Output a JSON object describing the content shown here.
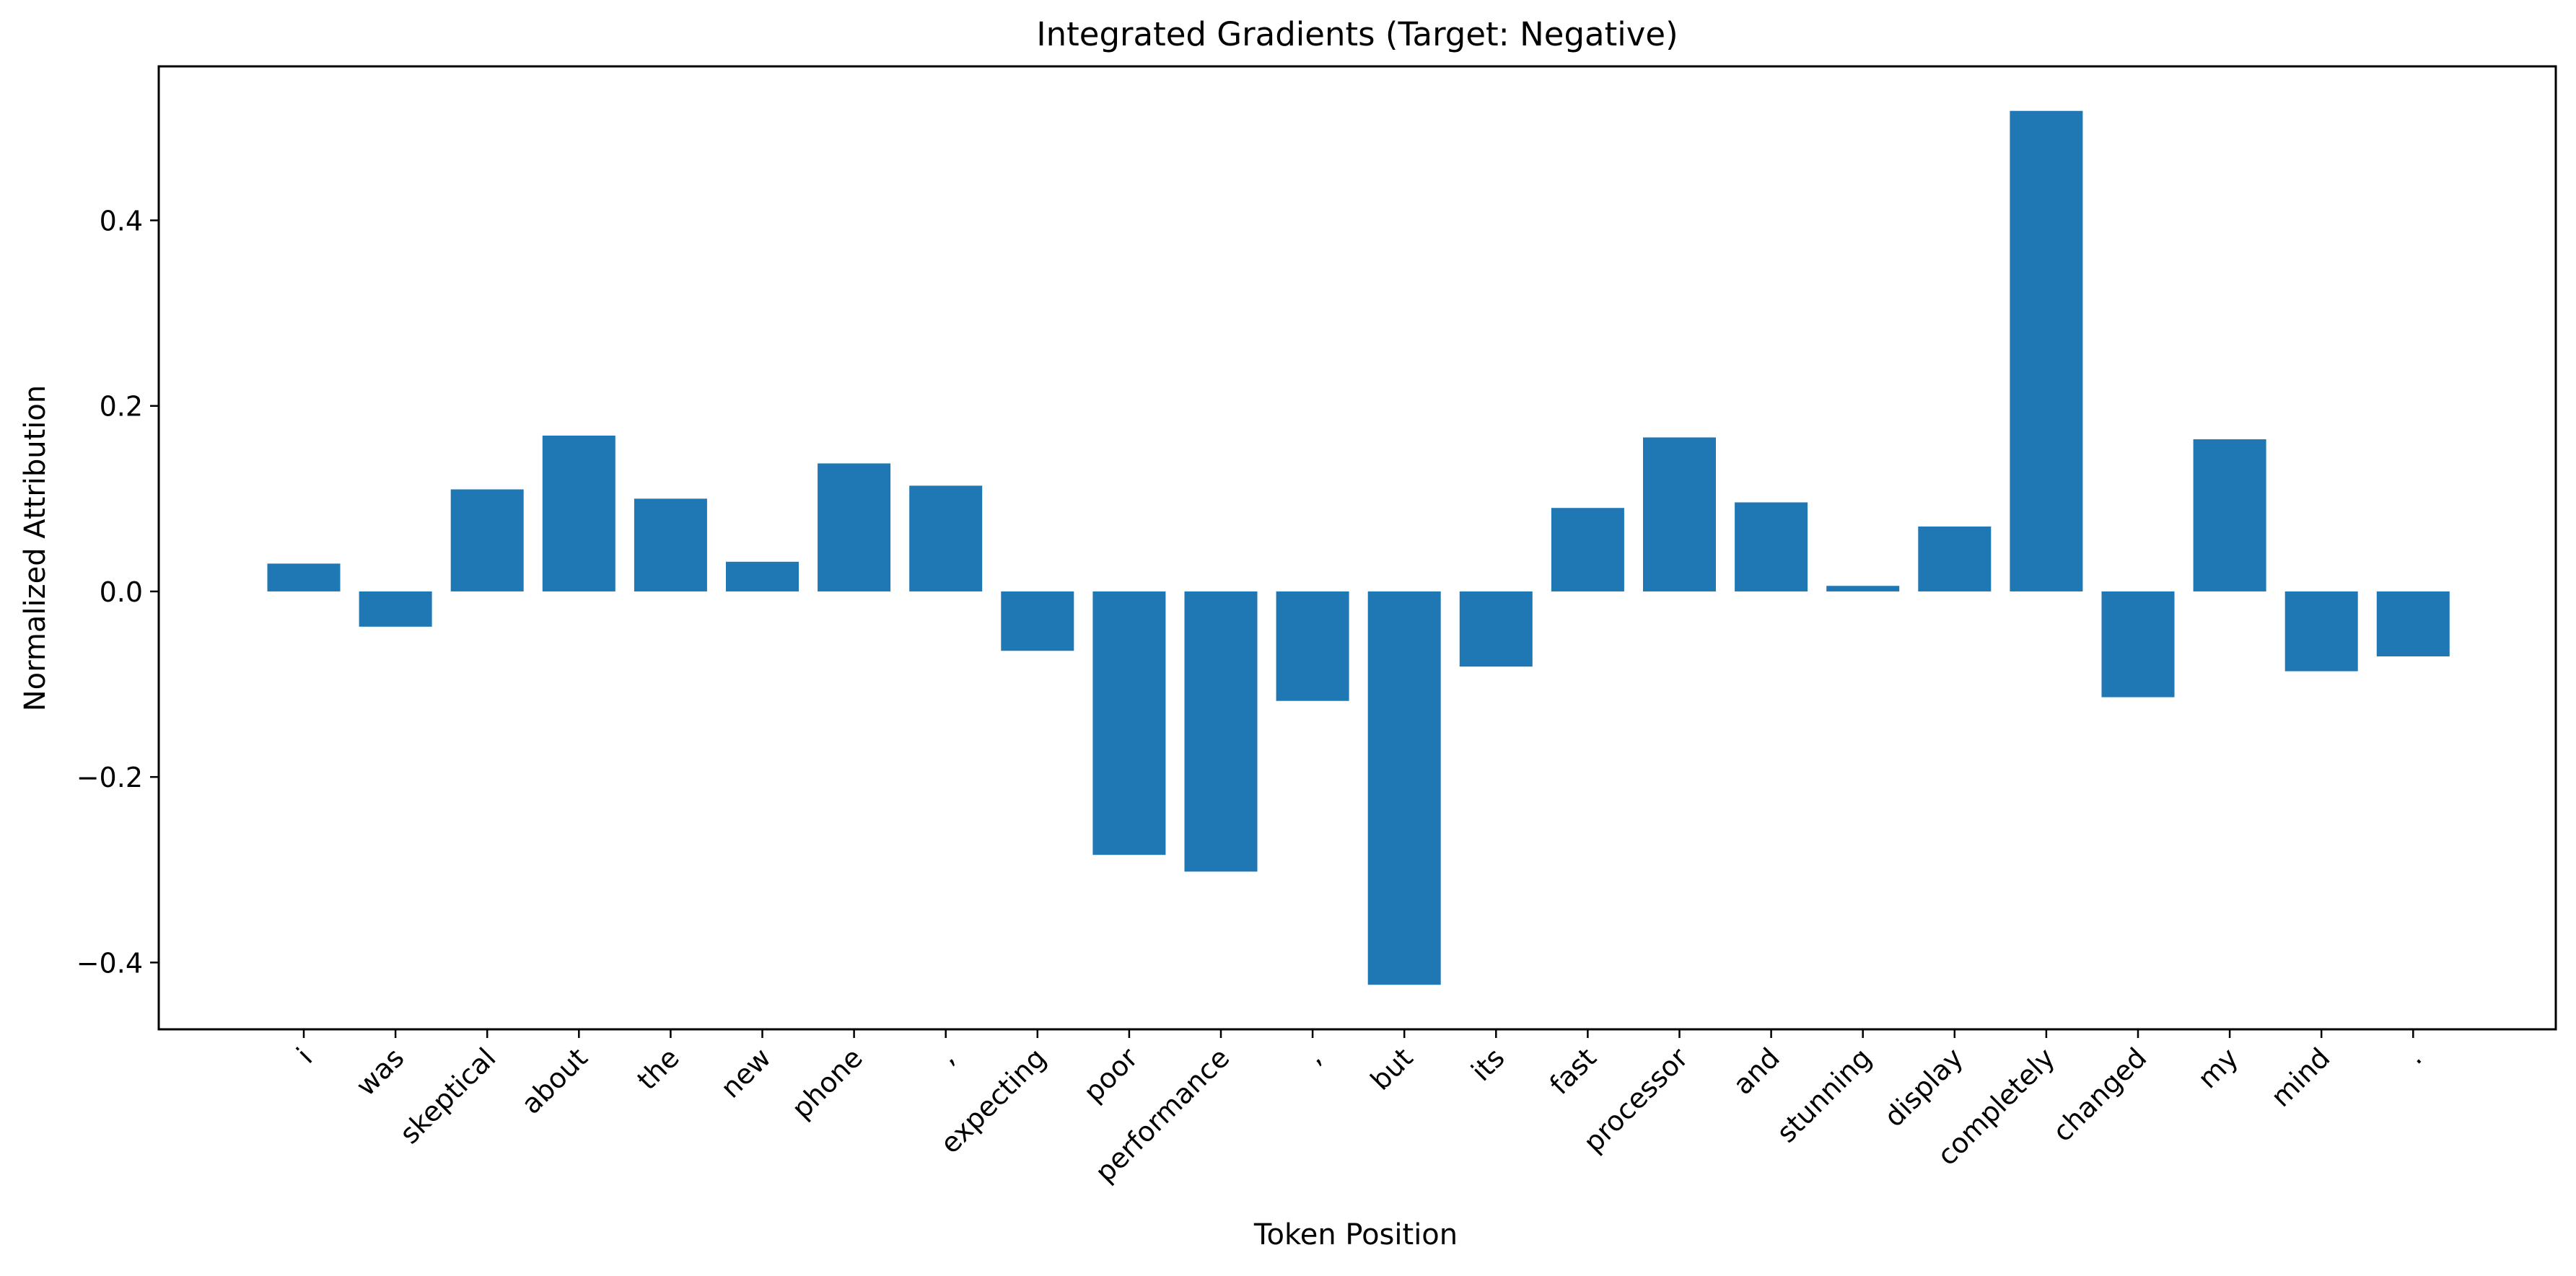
{
  "chart_data": {
    "type": "bar",
    "title": "Integrated Gradients (Target: Negative)",
    "xlabel": "Token Position",
    "ylabel": "Normalized Attribution",
    "categories": [
      "i",
      "was",
      "skeptical",
      "about",
      "the",
      "new",
      "phone",
      ",",
      "expecting",
      "poor",
      "performance",
      ",",
      "but",
      "its",
      "fast",
      "processor",
      "and",
      "stunning",
      "display",
      "completely",
      "changed",
      "my",
      "mind",
      "."
    ],
    "values": [
      0.03,
      -0.038,
      0.11,
      0.168,
      0.1,
      0.032,
      0.138,
      0.114,
      -0.064,
      -0.284,
      -0.302,
      -0.118,
      -0.424,
      -0.081,
      0.09,
      0.166,
      0.096,
      0.006,
      0.07,
      0.518,
      -0.114,
      0.164,
      -0.086,
      -0.07
    ],
    "ylim": [
      -0.472,
      0.566
    ],
    "yticks": [
      -0.4,
      -0.2,
      0.0,
      0.2,
      0.4
    ],
    "ytick_labels": [
      "−0.4",
      "−0.2",
      "0.0",
      "0.2",
      "0.4"
    ],
    "grid": false,
    "bar_color": "#1f77b4"
  }
}
